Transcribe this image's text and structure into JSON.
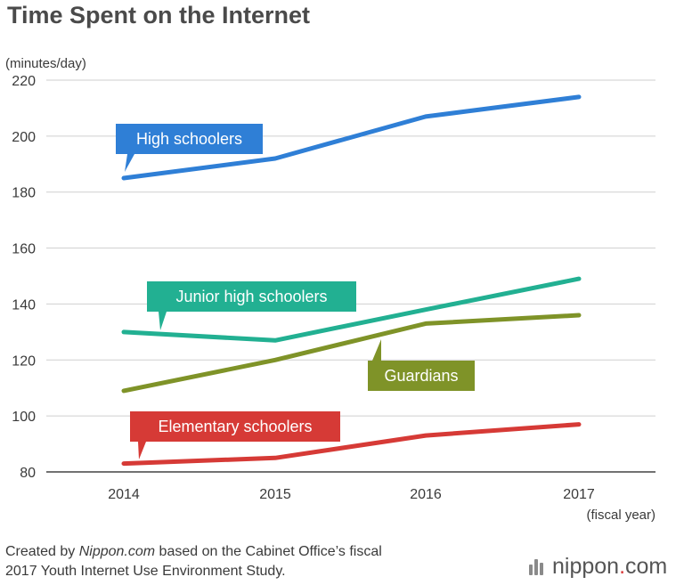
{
  "chart_data": {
    "type": "line",
    "title": "Time Spent on the Internet",
    "ylabel": "(minutes/day)",
    "xlabel": "(fiscal year)",
    "categories": [
      "2014",
      "2015",
      "2016",
      "2017"
    ],
    "ylim": [
      80,
      220
    ],
    "yticks": [
      80,
      100,
      120,
      140,
      160,
      180,
      200,
      220
    ],
    "grid": true,
    "series": [
      {
        "name": "High schoolers",
        "values": [
          185,
          192,
          207,
          214
        ],
        "color": "#2f7fd6"
      },
      {
        "name": "Junior high schoolers",
        "values": [
          130,
          127,
          138,
          149
        ],
        "color": "#22b092"
      },
      {
        "name": "Guardians",
        "values": [
          109,
          120,
          133,
          136
        ],
        "color": "#7f9328"
      },
      {
        "name": "Elementary schoolers",
        "values": [
          83,
          85,
          93,
          97
        ],
        "color": "#d63a36"
      }
    ]
  },
  "source": {
    "prefix": "Created by ",
    "site": "Nippon.com",
    "suffix": " based on the Cabinet Office’s fiscal",
    "line2": "2017 Youth Internet Use Environment Study."
  },
  "brand": {
    "name": "nippon",
    "dot": ".",
    "tld": "com"
  }
}
